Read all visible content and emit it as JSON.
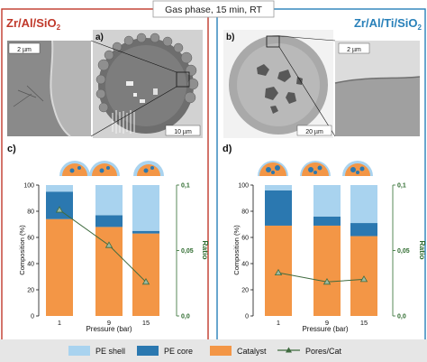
{
  "header": {
    "title": "Gas phase, 15 min, RT"
  },
  "panels": {
    "left": {
      "title": "Zr/Al/SiO",
      "title_sub": "2"
    },
    "right": {
      "title": "Zr/Al/Ti/SiO",
      "title_sub": "2"
    }
  },
  "images": {
    "a": {
      "label": "a)",
      "inset_scale": "2 µm",
      "main_scale": "10 µm"
    },
    "b": {
      "label": "b)",
      "inset_scale": "2 µm",
      "main_scale": "20 µm"
    }
  },
  "chart_data": [
    {
      "type": "bar",
      "panel_label": "c)",
      "categories": [
        "1",
        "9",
        "15"
      ],
      "series": [
        {
          "name": "Catalyst",
          "values": [
            74,
            68,
            63
          ]
        },
        {
          "name": "PE core",
          "values": [
            21,
            9,
            2
          ]
        },
        {
          "name": "PE shell",
          "values": [
            5,
            23,
            35
          ]
        }
      ],
      "secondary_series": {
        "name": "Pores/Cat",
        "values": [
          0.081,
          0.054,
          0.026
        ]
      },
      "xlabel": "Pressure (bar)",
      "ylabel": "Composition (%)",
      "y2label": "Ratio",
      "ylim": [
        0,
        100
      ],
      "y2lim": [
        0,
        0.1
      ],
      "yticks": [
        "0",
        "20",
        "40",
        "60",
        "80",
        "100"
      ],
      "y2ticks": [
        "0,0",
        "0,05",
        "0,1"
      ],
      "stacked": true
    },
    {
      "type": "bar",
      "panel_label": "d)",
      "categories": [
        "1",
        "9",
        "15"
      ],
      "series": [
        {
          "name": "Catalyst",
          "values": [
            69,
            69,
            61
          ]
        },
        {
          "name": "PE core",
          "values": [
            27,
            7,
            10
          ]
        },
        {
          "name": "PE shell",
          "values": [
            4,
            24,
            29
          ]
        }
      ],
      "secondary_series": {
        "name": "Pores/Cat",
        "values": [
          0.033,
          0.026,
          0.028
        ]
      },
      "xlabel": "Pressure (bar)",
      "ylabel": "Composition (%)",
      "y2label": "Ratio",
      "ylim": [
        0,
        100
      ],
      "y2lim": [
        0,
        0.1
      ],
      "yticks": [
        "0",
        "20",
        "40",
        "60",
        "80",
        "100"
      ],
      "y2ticks": [
        "0,0",
        "0,05",
        "0,1"
      ],
      "stacked": true
    }
  ],
  "legend": {
    "items": [
      {
        "name": "PE shell",
        "color": "#a9d3ef"
      },
      {
        "name": "PE core",
        "color": "#2b78b0"
      },
      {
        "name": "Catalyst",
        "color": "#f39646"
      },
      {
        "name": "Pores/Cat",
        "color": "#3f6b3f"
      }
    ]
  },
  "colors": {
    "left_frame": "#c0392b",
    "right_frame": "#2880b9",
    "ratio_axis": "#2e6b2e",
    "catalyst": "#f39646",
    "pe_core": "#2b78b0",
    "pe_shell": "#a9d3ef",
    "line": "#3f6b3f",
    "legend_bg": "#e6e6e6"
  }
}
